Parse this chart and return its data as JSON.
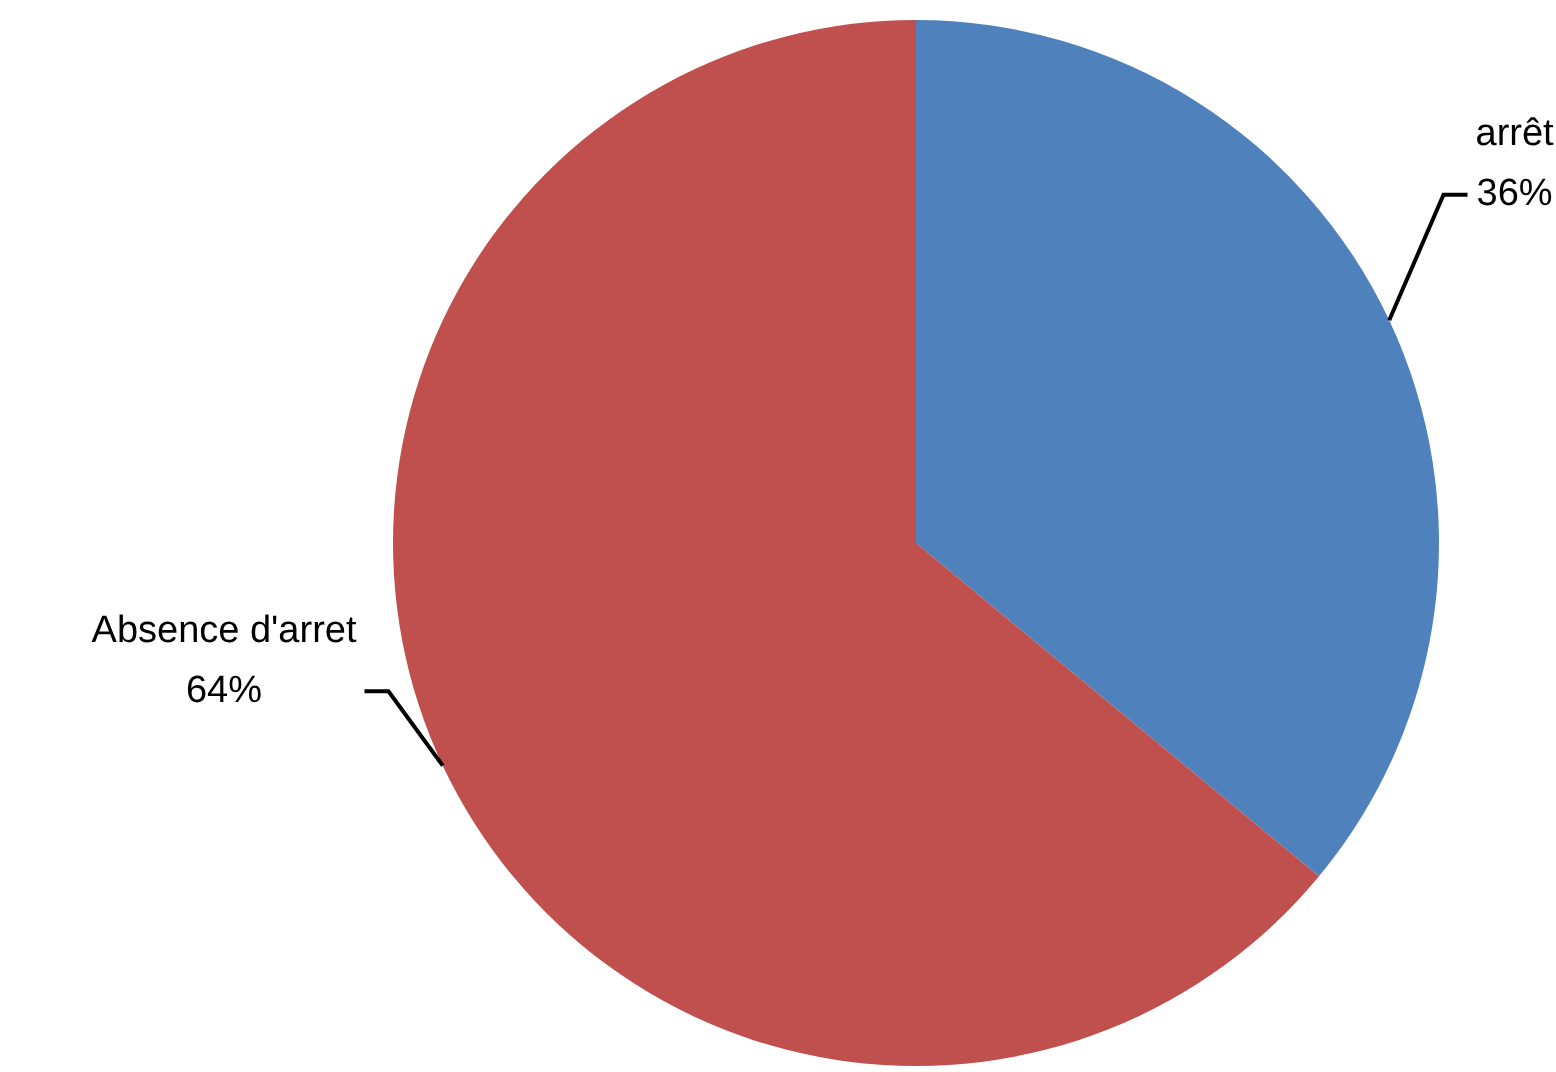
{
  "chart_data": {
    "type": "pie",
    "categories": [
      "arrêt",
      "Absence d'arret"
    ],
    "values": [
      36,
      64
    ],
    "colors": [
      "#4f81bd",
      "#c0504d"
    ],
    "value_labels": [
      "36%",
      "64%"
    ],
    "legend": false
  }
}
